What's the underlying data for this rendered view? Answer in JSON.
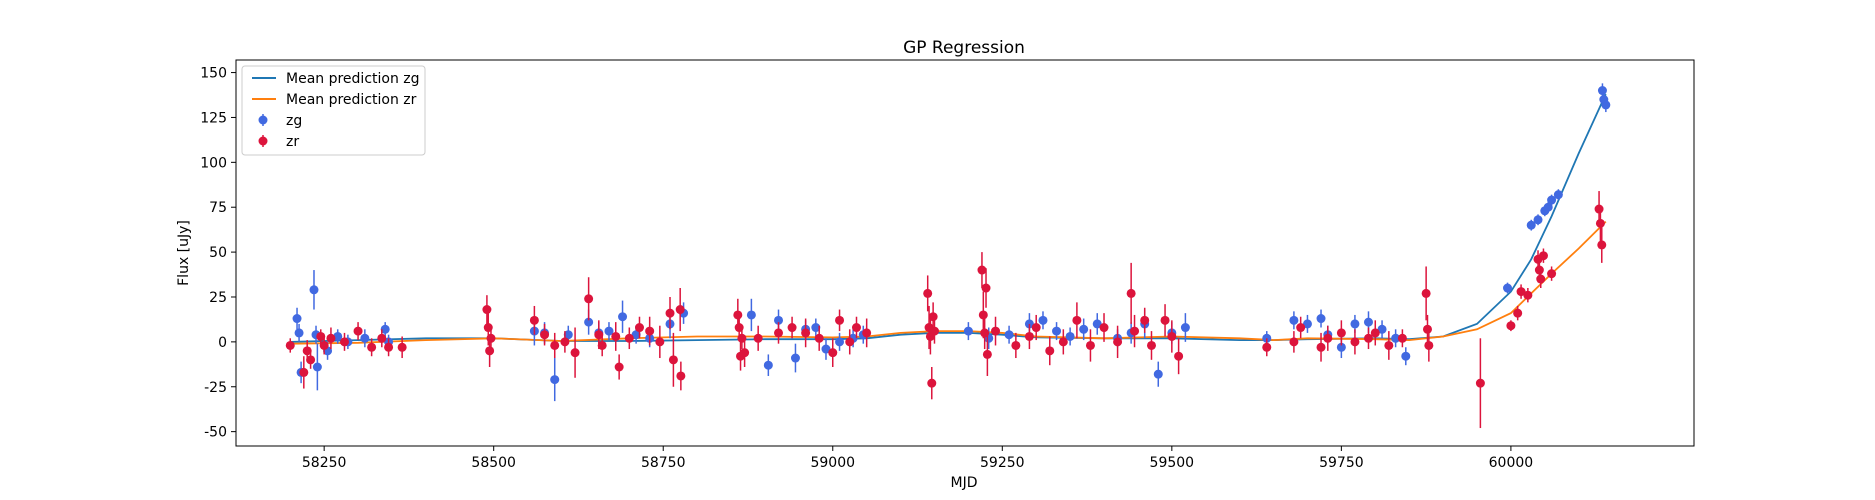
{
  "chart_data": {
    "type": "scatter",
    "title": "GP Regression",
    "xlabel": "MJD",
    "ylabel": "Flux [uJy]",
    "xlim": [
      58120,
      60270
    ],
    "ylim": [
      -58,
      157
    ],
    "xticks": [
      58250,
      58500,
      58750,
      59000,
      59250,
      59500,
      59750,
      60000
    ],
    "yticks": [
      -50,
      -25,
      0,
      25,
      50,
      75,
      100,
      125,
      150
    ],
    "grid": false,
    "legend_position": "top-left",
    "legend": [
      {
        "label": "Mean prediction zg",
        "kind": "line",
        "color": "#1f77b4"
      },
      {
        "label": "Mean prediction zr",
        "kind": "line",
        "color": "#ff7f0e"
      },
      {
        "label": "zg",
        "kind": "errorbar",
        "color": "#4169e1"
      },
      {
        "label": "zr",
        "kind": "errorbar",
        "color": "#dc143c"
      }
    ],
    "lines": [
      {
        "name": "Mean prediction zg",
        "color": "#1f77b4",
        "x": [
          58200,
          58300,
          58400,
          58500,
          58600,
          58700,
          58800,
          58900,
          59000,
          59050,
          59100,
          59150,
          59200,
          59250,
          59300,
          59400,
          59500,
          59600,
          59650,
          59700,
          59800,
          59850,
          59900,
          59950,
          60000,
          60030,
          60060,
          60100,
          60140
        ],
        "y": [
          0,
          1,
          2,
          2,
          0.5,
          0.5,
          1,
          1.5,
          1.5,
          2,
          4,
          5,
          5,
          4,
          2.5,
          2,
          2,
          1,
          1,
          1.5,
          2,
          1.5,
          3,
          10,
          28,
          46,
          70,
          105,
          138
        ]
      },
      {
        "name": "Mean prediction zr",
        "color": "#ff7f0e",
        "x": [
          58200,
          58300,
          58400,
          58500,
          58600,
          58700,
          58800,
          58900,
          59000,
          59050,
          59100,
          59150,
          59200,
          59250,
          59300,
          59400,
          59500,
          59600,
          59650,
          59700,
          59800,
          59850,
          59900,
          59950,
          60000,
          60030,
          60060,
          60100,
          60140
        ],
        "y": [
          -1,
          -0.5,
          1,
          2,
          0.5,
          2,
          3,
          3,
          2.5,
          3,
          5,
          6,
          6,
          5,
          3,
          2,
          3,
          2,
          1,
          2,
          1.5,
          1,
          3,
          7,
          16,
          27,
          38,
          52,
          67
        ]
      }
    ],
    "series": [
      {
        "name": "zg",
        "color": "#4169e1",
        "x": [
          58210,
          58213,
          58216,
          58235,
          58238,
          58240,
          58255,
          58270,
          58285,
          58310,
          58340,
          58345,
          58560,
          58575,
          58590,
          58610,
          58640,
          58655,
          58670,
          58690,
          58710,
          58730,
          58760,
          58780,
          58880,
          58905,
          58920,
          58945,
          58960,
          58975,
          58990,
          59010,
          59030,
          59045,
          59200,
          59230,
          59260,
          59290,
          59310,
          59330,
          59350,
          59370,
          59390,
          59420,
          59440,
          59460,
          59480,
          59500,
          59520,
          59640,
          59680,
          59700,
          59720,
          59730,
          59750,
          59770,
          59790,
          59810,
          59830,
          59845,
          59995,
          60030,
          60040,
          60050,
          60055,
          60060,
          60070,
          60135,
          60137,
          60140
        ],
        "y": [
          13,
          5,
          -17,
          29,
          4,
          -14,
          -5,
          3,
          0,
          2,
          7,
          0,
          6,
          5,
          -21,
          4,
          11,
          5,
          6,
          14,
          4,
          2,
          10,
          16,
          15,
          -13,
          12,
          -9,
          7,
          8,
          -4,
          0,
          2,
          4,
          6,
          2,
          4,
          10,
          12,
          6,
          3,
          7,
          10,
          2,
          5,
          10,
          -18,
          5,
          8,
          2,
          12,
          10,
          13,
          4,
          -3,
          10,
          11,
          7,
          2,
          -8,
          30,
          65,
          68,
          73,
          75,
          79,
          82,
          140,
          135,
          132
        ],
        "yerr": [
          6,
          5,
          6,
          11,
          5,
          13,
          5,
          4,
          4,
          5,
          4,
          4,
          8,
          6,
          12,
          5,
          7,
          6,
          5,
          9,
          5,
          5,
          8,
          6,
          9,
          6,
          6,
          8,
          5,
          5,
          6,
          5,
          5,
          5,
          5,
          6,
          5,
          6,
          5,
          5,
          5,
          6,
          6,
          5,
          6,
          8,
          7,
          6,
          8,
          4,
          5,
          5,
          5,
          5,
          6,
          5,
          6,
          5,
          5,
          5,
          3,
          3,
          3,
          3,
          3,
          3,
          3,
          4,
          4,
          4
        ]
      },
      {
        "name": "zr",
        "color": "#dc143c",
        "x": [
          58200,
          58220,
          58225,
          58230,
          58245,
          58250,
          58260,
          58280,
          58300,
          58320,
          58335,
          58345,
          58365,
          58490,
          58492,
          58494,
          58496,
          58560,
          58575,
          58590,
          58605,
          58620,
          58640,
          58655,
          58660,
          58680,
          58685,
          58700,
          58715,
          58730,
          58745,
          58760,
          58765,
          58775,
          58776,
          58860,
          58862,
          58864,
          58866,
          58870,
          58890,
          58920,
          58940,
          58960,
          58980,
          59000,
          59010,
          59025,
          59035,
          59050,
          59140,
          59142,
          59144,
          59146,
          59148,
          59150,
          59220,
          59222,
          59224,
          59226,
          59228,
          59240,
          59270,
          59290,
          59300,
          59320,
          59340,
          59360,
          59380,
          59400,
          59420,
          59440,
          59445,
          59460,
          59470,
          59490,
          59500,
          59510,
          59640,
          59680,
          59690,
          59720,
          59730,
          59750,
          59770,
          59790,
          59800,
          59820,
          59840,
          59875,
          59877,
          59879,
          59955,
          60000,
          60010,
          60015,
          60025,
          60040,
          60042,
          60044,
          60048,
          60060,
          60130,
          60132,
          60134
        ],
        "yerr": [
          4,
          9,
          6,
          5,
          4,
          5,
          6,
          5,
          5,
          5,
          5,
          5,
          6,
          8,
          10,
          9,
          7,
          8,
          6,
          7,
          6,
          14,
          12,
          8,
          6,
          8,
          7,
          6,
          6,
          8,
          9,
          9,
          15,
          12,
          8,
          9,
          7,
          8,
          6,
          8,
          7,
          6,
          6,
          8,
          7,
          8,
          6,
          7,
          6,
          8,
          10,
          12,
          10,
          9,
          8,
          7,
          10,
          13,
          9,
          11,
          12,
          8,
          7,
          7,
          7,
          8,
          7,
          10,
          9,
          8,
          9,
          17,
          9,
          7,
          8,
          9,
          9,
          10,
          5,
          6,
          6,
          8,
          7,
          7,
          7,
          6,
          7,
          8,
          5,
          15,
          8,
          9,
          25,
          3,
          4,
          4,
          4,
          5,
          5,
          5,
          4,
          4,
          10,
          10,
          10
        ],
        "y": [
          -2,
          -17,
          -5,
          -10,
          3,
          -2,
          2,
          0,
          6,
          -3,
          2,
          -3,
          -3,
          18,
          8,
          -5,
          2,
          12,
          4,
          -2,
          0,
          -6,
          24,
          4,
          -2,
          3,
          -14,
          2,
          8,
          6,
          0,
          16,
          -10,
          18,
          -19,
          15,
          8,
          -8,
          2,
          -6,
          2,
          5,
          8,
          5,
          2,
          -6,
          12,
          0,
          8,
          5,
          27,
          8,
          3,
          -23,
          14,
          6,
          40,
          15,
          5,
          30,
          -7,
          6,
          -2,
          3,
          8,
          -5,
          0,
          12,
          -2,
          8,
          0,
          27,
          6,
          12,
          -2,
          12,
          3,
          -8,
          -3,
          0,
          8,
          -3,
          2,
          5,
          0,
          2,
          5,
          -2,
          2,
          27,
          7,
          -2,
          -23,
          9,
          16,
          28,
          26,
          46,
          40,
          35,
          48,
          38,
          74,
          66,
          54
        ]
      }
    ]
  }
}
